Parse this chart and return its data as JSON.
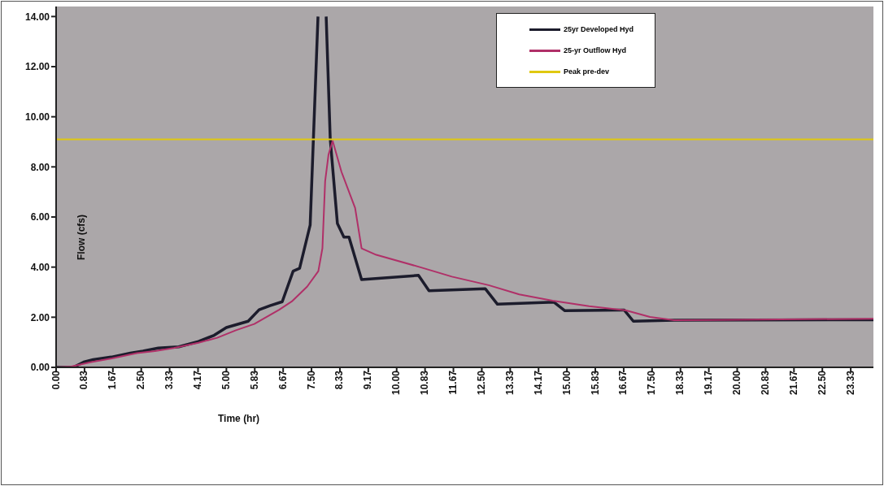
{
  "chart_data": {
    "type": "line",
    "xlabel": "Time (hr)",
    "ylabel": "Flow (cfs)",
    "xlim": [
      0,
      24
    ],
    "ylim": [
      0,
      14.4
    ],
    "xticks": [
      {
        "value": 0,
        "label": "0.00"
      },
      {
        "value": 0.8333,
        "label": "0.83"
      },
      {
        "value": 1.6667,
        "label": "1.67"
      },
      {
        "value": 2.5,
        "label": "2.50"
      },
      {
        "value": 3.3333,
        "label": "3.33"
      },
      {
        "value": 4.1667,
        "label": "4.17"
      },
      {
        "value": 5,
        "label": "5.00"
      },
      {
        "value": 5.8333,
        "label": "5.83"
      },
      {
        "value": 6.6667,
        "label": "6.67"
      },
      {
        "value": 7.5,
        "label": "7.50"
      },
      {
        "value": 8.3333,
        "label": "8.33"
      },
      {
        "value": 9.1667,
        "label": "9.17"
      },
      {
        "value": 10,
        "label": "10.00"
      },
      {
        "value": 10.8333,
        "label": "10.83"
      },
      {
        "value": 11.6667,
        "label": "11.67"
      },
      {
        "value": 12.5,
        "label": "12.50"
      },
      {
        "value": 13.3333,
        "label": "13.33"
      },
      {
        "value": 14.1667,
        "label": "14.17"
      },
      {
        "value": 15,
        "label": "15.00"
      },
      {
        "value": 15.8333,
        "label": "15.83"
      },
      {
        "value": 16.6667,
        "label": "16.67"
      },
      {
        "value": 17.5,
        "label": "17.50"
      },
      {
        "value": 18.3333,
        "label": "18.33"
      },
      {
        "value": 19.1667,
        "label": "19.17"
      },
      {
        "value": 20,
        "label": "20.00"
      },
      {
        "value": 20.8333,
        "label": "20.83"
      },
      {
        "value": 21.6667,
        "label": "21.67"
      },
      {
        "value": 22.5,
        "label": "22.50"
      },
      {
        "value": 23.3333,
        "label": "23.33"
      }
    ],
    "yticks": [
      {
        "value": 0,
        "label": "0.00"
      },
      {
        "value": 2,
        "label": "2.00"
      },
      {
        "value": 4,
        "label": "4.00"
      },
      {
        "value": 6,
        "label": "6.00"
      },
      {
        "value": 8,
        "label": "8.00"
      },
      {
        "value": 10,
        "label": "10.00"
      },
      {
        "value": 12,
        "label": "12.00"
      },
      {
        "value": 14,
        "label": "14.00"
      }
    ],
    "grid": false,
    "legend": "top",
    "marker": "none",
    "line_style": "solid",
    "series": [
      {
        "name": "25yr Developed Hyd",
        "color": "#1c1c2c",
        "x": [
          0,
          0.5,
          0.81,
          1.09,
          1.62,
          2.18,
          2.55,
          3.0,
          3.6,
          4.18,
          4.64,
          5.0,
          5.64,
          5.96,
          6.28,
          6.64,
          6.96,
          7.15,
          7.46,
          7.69,
          7.8,
          7.93,
          8.05,
          8.26,
          8.45,
          8.6,
          8.97,
          10.64,
          10.95,
          12.6,
          12.96,
          14.62,
          14.94,
          16.68,
          16.95,
          18.15,
          24
        ],
        "values": [
          0,
          0,
          0.21,
          0.31,
          0.41,
          0.57,
          0.65,
          0.77,
          0.82,
          1.03,
          1.28,
          1.59,
          1.84,
          2.3,
          2.46,
          2.62,
          3.84,
          3.95,
          5.68,
          14.0,
          null,
          14.0,
          9.1,
          5.74,
          5.2,
          5.2,
          3.5,
          3.67,
          3.06,
          3.14,
          2.52,
          2.6,
          2.26,
          2.29,
          1.84,
          1.88,
          1.9
        ]
      },
      {
        "name": "25-yr Outflow Hyd",
        "color": "#b03068",
        "x": [
          0,
          0.45,
          1.0,
          1.64,
          2.37,
          2.9,
          3.45,
          4.18,
          4.73,
          5.28,
          5.82,
          6.55,
          6.92,
          7.37,
          7.7,
          7.82,
          7.9,
          8.0,
          8.12,
          8.38,
          8.78,
          8.97,
          9.4,
          10.76,
          11.62,
          12.7,
          13.6,
          14.58,
          15.65,
          16.72,
          17.44,
          18.15,
          19.2,
          24
        ],
        "values": [
          0,
          0.03,
          0.2,
          0.36,
          0.57,
          0.65,
          0.77,
          0.98,
          1.18,
          1.48,
          1.73,
          2.3,
          2.63,
          3.22,
          3.84,
          4.75,
          7.43,
          8.5,
          9.04,
          7.8,
          6.36,
          4.75,
          4.49,
          3.97,
          3.62,
          3.28,
          2.91,
          2.66,
          2.44,
          2.28,
          2.01,
          1.88,
          1.89,
          1.94
        ]
      },
      {
        "name": "Peak pre-dev",
        "color": "#e0c810",
        "x": [
          0,
          24
        ],
        "values": [
          9.1,
          9.1
        ]
      }
    ]
  }
}
